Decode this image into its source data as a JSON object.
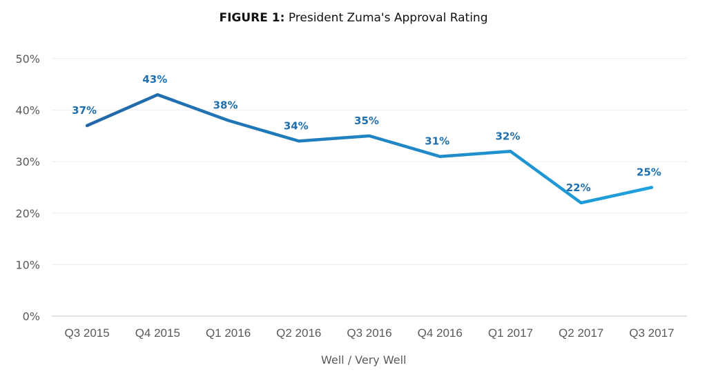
{
  "title": {
    "bold": "FIGURE 1:",
    "rest": " President Zuma's Approval Rating"
  },
  "chart_data": {
    "type": "line",
    "title": "FIGURE 1: President Zuma's Approval Rating",
    "xlabel": "",
    "ylabel": "",
    "categories": [
      "Q3 2015",
      "Q4 2015",
      "Q1 2016",
      "Q2 2016",
      "Q3 2016",
      "Q4 2016",
      "Q1 2017",
      "Q2 2017",
      "Q3 2017"
    ],
    "series": [
      {
        "name": "Well / Very Well",
        "values": [
          37,
          43,
          38,
          34,
          35,
          31,
          32,
          22,
          25
        ],
        "labels": [
          "37%",
          "43%",
          "38%",
          "34%",
          "35%",
          "31%",
          "32%",
          "22%",
          "25%"
        ]
      }
    ],
    "ylim": [
      0,
      50
    ],
    "yticks": [
      0,
      10,
      20,
      30,
      40,
      50
    ],
    "ytick_labels": [
      "0%",
      "10%",
      "20%",
      "30%",
      "40%",
      "50%"
    ],
    "grid": true,
    "legend": "bottom-center",
    "colors": {
      "line_start": "#2166a8",
      "line_end": "#1fa2de",
      "label": "#1f6fae",
      "grid": "#ececec",
      "axis": "#d9d9d9"
    }
  }
}
